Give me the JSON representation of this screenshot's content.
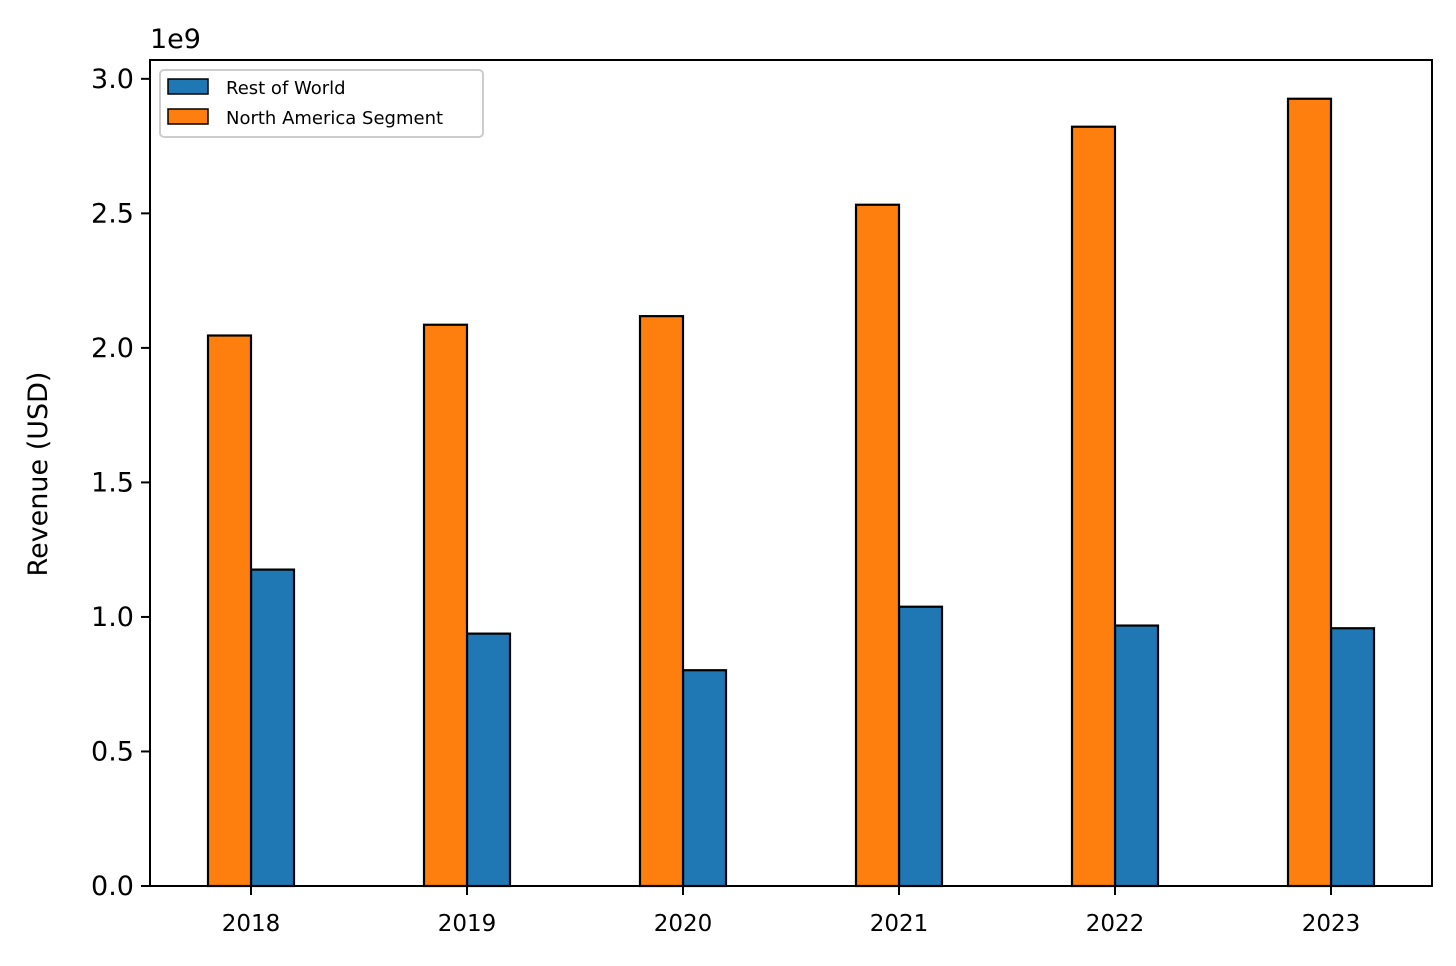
{
  "chart_data": {
    "type": "bar",
    "title": "",
    "xlabel": "",
    "ylabel": "Revenue (USD)",
    "y_offset_label": "1e9",
    "categories": [
      "2018",
      "2019",
      "2020",
      "2021",
      "2022",
      "2023"
    ],
    "series": [
      {
        "name": "Rest of World",
        "color": "#1f77b4",
        "values": [
          1176000000,
          938000000,
          802000000,
          1038000000,
          968000000,
          958000000
        ]
      },
      {
        "name": "North America Segment",
        "color": "#ff7f0e",
        "values": [
          2046000000,
          2086000000,
          2118000000,
          2532000000,
          2822000000,
          2926000000
        ]
      }
    ],
    "ylim": [
      0,
      3070000000
    ],
    "yticks": [
      0,
      500000000,
      1000000000,
      1500000000,
      2000000000,
      2500000000,
      3000000000
    ],
    "ytick_labels": [
      "0.0",
      "0.5",
      "1.0",
      "1.5",
      "2.0",
      "2.5",
      "3.0"
    ],
    "grid": false,
    "legend_position": "top-left",
    "bar_edge_color": "#000000"
  }
}
